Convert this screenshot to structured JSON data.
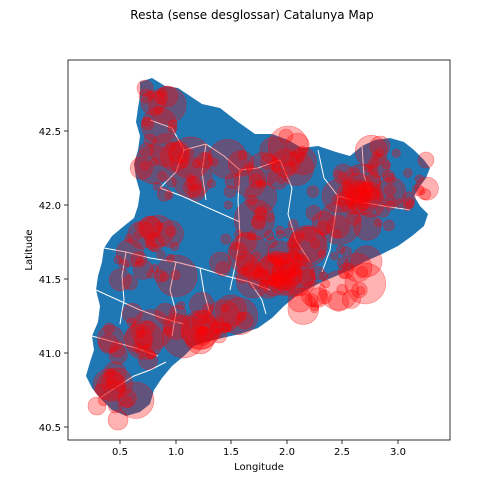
{
  "title": "Resta (sense desglossar) Catalunya Map",
  "chart_data": {
    "type": "scatter",
    "title": "Resta (sense desglossar) Catalunya Map",
    "xlabel": "Longitude",
    "ylabel": "Latitude",
    "xlim": [
      0.07,
      3.46
    ],
    "ylim": [
      40.42,
      42.99
    ],
    "xticks": [
      "0.5",
      "1.0",
      "1.5",
      "2.0",
      "2.5",
      "3.0"
    ],
    "yticks": [
      "40.5",
      "41.0",
      "41.5",
      "42.0",
      "42.5"
    ],
    "grid": false,
    "map_fill_color": "#1f77b4",
    "border_color": "#ffffff",
    "marker_color": "#ff0000",
    "marker_alpha": 0.3
  }
}
